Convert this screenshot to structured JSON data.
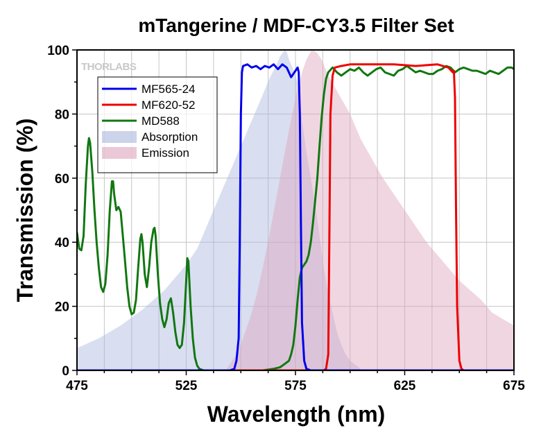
{
  "chart_data": {
    "type": "line",
    "title": "mTangerine / MDF-CY3.5 Filter Set",
    "xlabel": "Wavelength (nm)",
    "ylabel": "Transmission (%)",
    "xlim": [
      475,
      675
    ],
    "ylim": [
      0,
      100
    ],
    "x_ticks": [
      475,
      525,
      575,
      625,
      675
    ],
    "y_ticks": [
      0,
      20,
      40,
      60,
      80,
      100
    ],
    "grid": true,
    "legend_position": "upper-left",
    "watermark": "THORLABS",
    "series": [
      {
        "name": "MF565-24",
        "kind": "line",
        "color": "#0000ee",
        "points": [
          [
            475,
            0
          ],
          [
            545,
            0
          ],
          [
            547,
            0.5
          ],
          [
            548,
            3
          ],
          [
            549,
            10
          ],
          [
            549.5,
            40
          ],
          [
            550,
            80
          ],
          [
            550.5,
            93
          ],
          [
            551,
            95
          ],
          [
            553,
            95.5
          ],
          [
            555,
            94.5
          ],
          [
            557,
            95
          ],
          [
            559,
            94
          ],
          [
            561,
            95
          ],
          [
            563,
            94.5
          ],
          [
            565,
            95.5
          ],
          [
            567,
            94
          ],
          [
            569,
            95.5
          ],
          [
            571,
            94.5
          ],
          [
            573,
            91.5
          ],
          [
            575,
            93.5
          ],
          [
            576,
            94.5
          ],
          [
            576.5,
            93
          ],
          [
            577,
            80
          ],
          [
            577.5,
            45
          ],
          [
            578,
            15
          ],
          [
            579,
            3
          ],
          [
            580,
            0.5
          ],
          [
            582,
            0
          ],
          [
            675,
            0
          ]
        ]
      },
      {
        "name": "MF620-52",
        "kind": "line",
        "color": "#ee0000",
        "points": [
          [
            475,
            0
          ],
          [
            588,
            0
          ],
          [
            589,
            0.5
          ],
          [
            590,
            5
          ],
          [
            590.5,
            40
          ],
          [
            591,
            80
          ],
          [
            592,
            92
          ],
          [
            593,
            94.5
          ],
          [
            596,
            95
          ],
          [
            600,
            95.5
          ],
          [
            610,
            95.5
          ],
          [
            620,
            95.5
          ],
          [
            630,
            95
          ],
          [
            640,
            95.5
          ],
          [
            645,
            94.5
          ],
          [
            647,
            93
          ],
          [
            647.5,
            93.5
          ],
          [
            648,
            85
          ],
          [
            648.5,
            50
          ],
          [
            649,
            20
          ],
          [
            650,
            3
          ],
          [
            651,
            0.5
          ],
          [
            652,
            0
          ],
          [
            675,
            0
          ]
        ]
      },
      {
        "name": "MD588",
        "kind": "line",
        "color": "#117711",
        "points": [
          [
            475,
            43
          ],
          [
            476,
            38
          ],
          [
            477,
            37.5
          ],
          [
            478,
            42
          ],
          [
            479,
            58
          ],
          [
            480,
            70
          ],
          [
            480.5,
            72.5
          ],
          [
            481,
            71
          ],
          [
            482,
            62
          ],
          [
            483,
            50
          ],
          [
            484,
            40
          ],
          [
            485,
            32
          ],
          [
            486,
            26
          ],
          [
            487,
            24.5
          ],
          [
            488,
            27
          ],
          [
            489,
            36
          ],
          [
            490,
            50
          ],
          [
            491,
            59
          ],
          [
            491.5,
            59
          ],
          [
            492,
            55
          ],
          [
            493,
            50
          ],
          [
            494,
            51
          ],
          [
            495,
            49.5
          ],
          [
            496,
            42
          ],
          [
            497,
            34
          ],
          [
            498,
            26
          ],
          [
            499,
            20
          ],
          [
            500,
            17.5
          ],
          [
            501,
            18
          ],
          [
            502,
            22
          ],
          [
            503,
            32
          ],
          [
            504,
            41
          ],
          [
            504.5,
            42.5
          ],
          [
            505,
            40
          ],
          [
            506,
            30
          ],
          [
            507,
            26
          ],
          [
            508,
            32
          ],
          [
            509,
            40
          ],
          [
            510,
            44
          ],
          [
            510.5,
            44.5
          ],
          [
            511,
            42
          ],
          [
            512,
            30
          ],
          [
            513,
            21
          ],
          [
            514,
            16
          ],
          [
            515,
            13.5
          ],
          [
            516,
            16
          ],
          [
            517,
            21
          ],
          [
            518,
            22.5
          ],
          [
            519,
            18
          ],
          [
            520,
            12
          ],
          [
            521,
            8
          ],
          [
            522,
            7
          ],
          [
            523,
            8
          ],
          [
            524,
            15
          ],
          [
            525,
            28
          ],
          [
            525.5,
            35
          ],
          [
            526,
            34
          ],
          [
            527,
            20
          ],
          [
            528,
            10
          ],
          [
            529,
            4
          ],
          [
            530,
            1.5
          ],
          [
            531,
            0.5
          ],
          [
            533,
            0
          ],
          [
            550,
            0
          ],
          [
            560,
            0
          ],
          [
            565,
            0.5
          ],
          [
            568,
            1
          ],
          [
            570,
            2
          ],
          [
            572,
            3
          ],
          [
            573,
            5
          ],
          [
            574,
            8
          ],
          [
            575,
            14
          ],
          [
            576,
            22
          ],
          [
            577,
            29
          ],
          [
            578,
            32
          ],
          [
            579,
            33
          ],
          [
            580,
            34
          ],
          [
            581,
            36
          ],
          [
            582,
            40
          ],
          [
            583,
            46
          ],
          [
            584,
            53
          ],
          [
            585,
            60
          ],
          [
            586,
            70
          ],
          [
            587,
            79
          ],
          [
            588,
            86
          ],
          [
            589,
            91
          ],
          [
            590,
            93
          ],
          [
            592,
            94.5
          ],
          [
            594,
            93
          ],
          [
            596,
            92
          ],
          [
            598,
            93
          ],
          [
            600,
            94
          ],
          [
            602,
            93.5
          ],
          [
            604,
            94.5
          ],
          [
            606,
            93
          ],
          [
            608,
            92
          ],
          [
            610,
            93
          ],
          [
            612,
            94
          ],
          [
            614,
            94.5
          ],
          [
            616,
            93
          ],
          [
            618,
            92.5
          ],
          [
            620,
            92
          ],
          [
            622,
            93.5
          ],
          [
            624,
            94
          ],
          [
            626,
            95
          ],
          [
            628,
            94
          ],
          [
            630,
            93
          ],
          [
            632,
            93.5
          ],
          [
            634,
            93
          ],
          [
            636,
            92.5
          ],
          [
            638,
            92.5
          ],
          [
            640,
            93.5
          ],
          [
            642,
            94
          ],
          [
            644,
            95
          ],
          [
            646,
            94.5
          ],
          [
            648,
            93
          ],
          [
            650,
            94
          ],
          [
            652,
            94.5
          ],
          [
            654,
            94
          ],
          [
            656,
            93.5
          ],
          [
            658,
            93.5
          ],
          [
            660,
            93
          ],
          [
            662,
            92.5
          ],
          [
            664,
            93.5
          ],
          [
            666,
            93
          ],
          [
            668,
            92.5
          ],
          [
            670,
            93.5
          ],
          [
            672,
            94.5
          ],
          [
            674,
            94.5
          ],
          [
            675,
            94
          ]
        ]
      },
      {
        "name": "Absorption",
        "kind": "area",
        "color": "#aab8de",
        "opacity": 0.45,
        "points": [
          [
            475,
            7
          ],
          [
            485,
            10
          ],
          [
            495,
            14
          ],
          [
            505,
            19
          ],
          [
            515,
            25
          ],
          [
            525,
            33
          ],
          [
            530,
            38
          ],
          [
            535,
            46
          ],
          [
            540,
            54
          ],
          [
            545,
            62
          ],
          [
            550,
            70
          ],
          [
            555,
            78
          ],
          [
            560,
            86
          ],
          [
            563,
            91
          ],
          [
            566,
            95
          ],
          [
            568,
            98
          ],
          [
            570,
            100
          ],
          [
            571,
            99.5
          ],
          [
            572,
            97
          ],
          [
            574,
            94
          ],
          [
            576,
            90
          ],
          [
            578,
            78
          ],
          [
            580,
            68
          ],
          [
            582,
            60
          ],
          [
            584,
            52
          ],
          [
            586,
            42
          ],
          [
            588,
            32
          ],
          [
            590,
            24
          ],
          [
            592,
            18
          ],
          [
            594,
            12
          ],
          [
            596,
            8
          ],
          [
            598,
            5
          ],
          [
            600,
            3
          ],
          [
            602,
            2
          ],
          [
            604,
            1
          ],
          [
            605,
            0
          ]
        ]
      },
      {
        "name": "Emission",
        "kind": "area",
        "color": "#dea3bd",
        "opacity": 0.45,
        "points": [
          [
            543,
            0
          ],
          [
            545,
            2
          ],
          [
            548,
            5
          ],
          [
            551,
            10
          ],
          [
            554,
            16
          ],
          [
            557,
            23
          ],
          [
            560,
            32
          ],
          [
            563,
            42
          ],
          [
            566,
            53
          ],
          [
            569,
            64
          ],
          [
            572,
            75
          ],
          [
            575,
            85
          ],
          [
            578,
            93
          ],
          [
            580,
            97
          ],
          [
            582,
            99.5
          ],
          [
            583,
            100
          ],
          [
            585,
            99
          ],
          [
            587,
            97
          ],
          [
            590,
            92
          ],
          [
            595,
            86
          ],
          [
            600,
            80
          ],
          [
            605,
            72
          ],
          [
            610,
            66
          ],
          [
            615,
            60
          ],
          [
            620,
            55
          ],
          [
            625,
            50
          ],
          [
            630,
            45
          ],
          [
            635,
            40
          ],
          [
            640,
            36
          ],
          [
            645,
            32
          ],
          [
            650,
            28
          ],
          [
            655,
            25
          ],
          [
            660,
            22
          ],
          [
            665,
            18
          ],
          [
            670,
            16
          ],
          [
            675,
            14
          ]
        ]
      }
    ]
  }
}
